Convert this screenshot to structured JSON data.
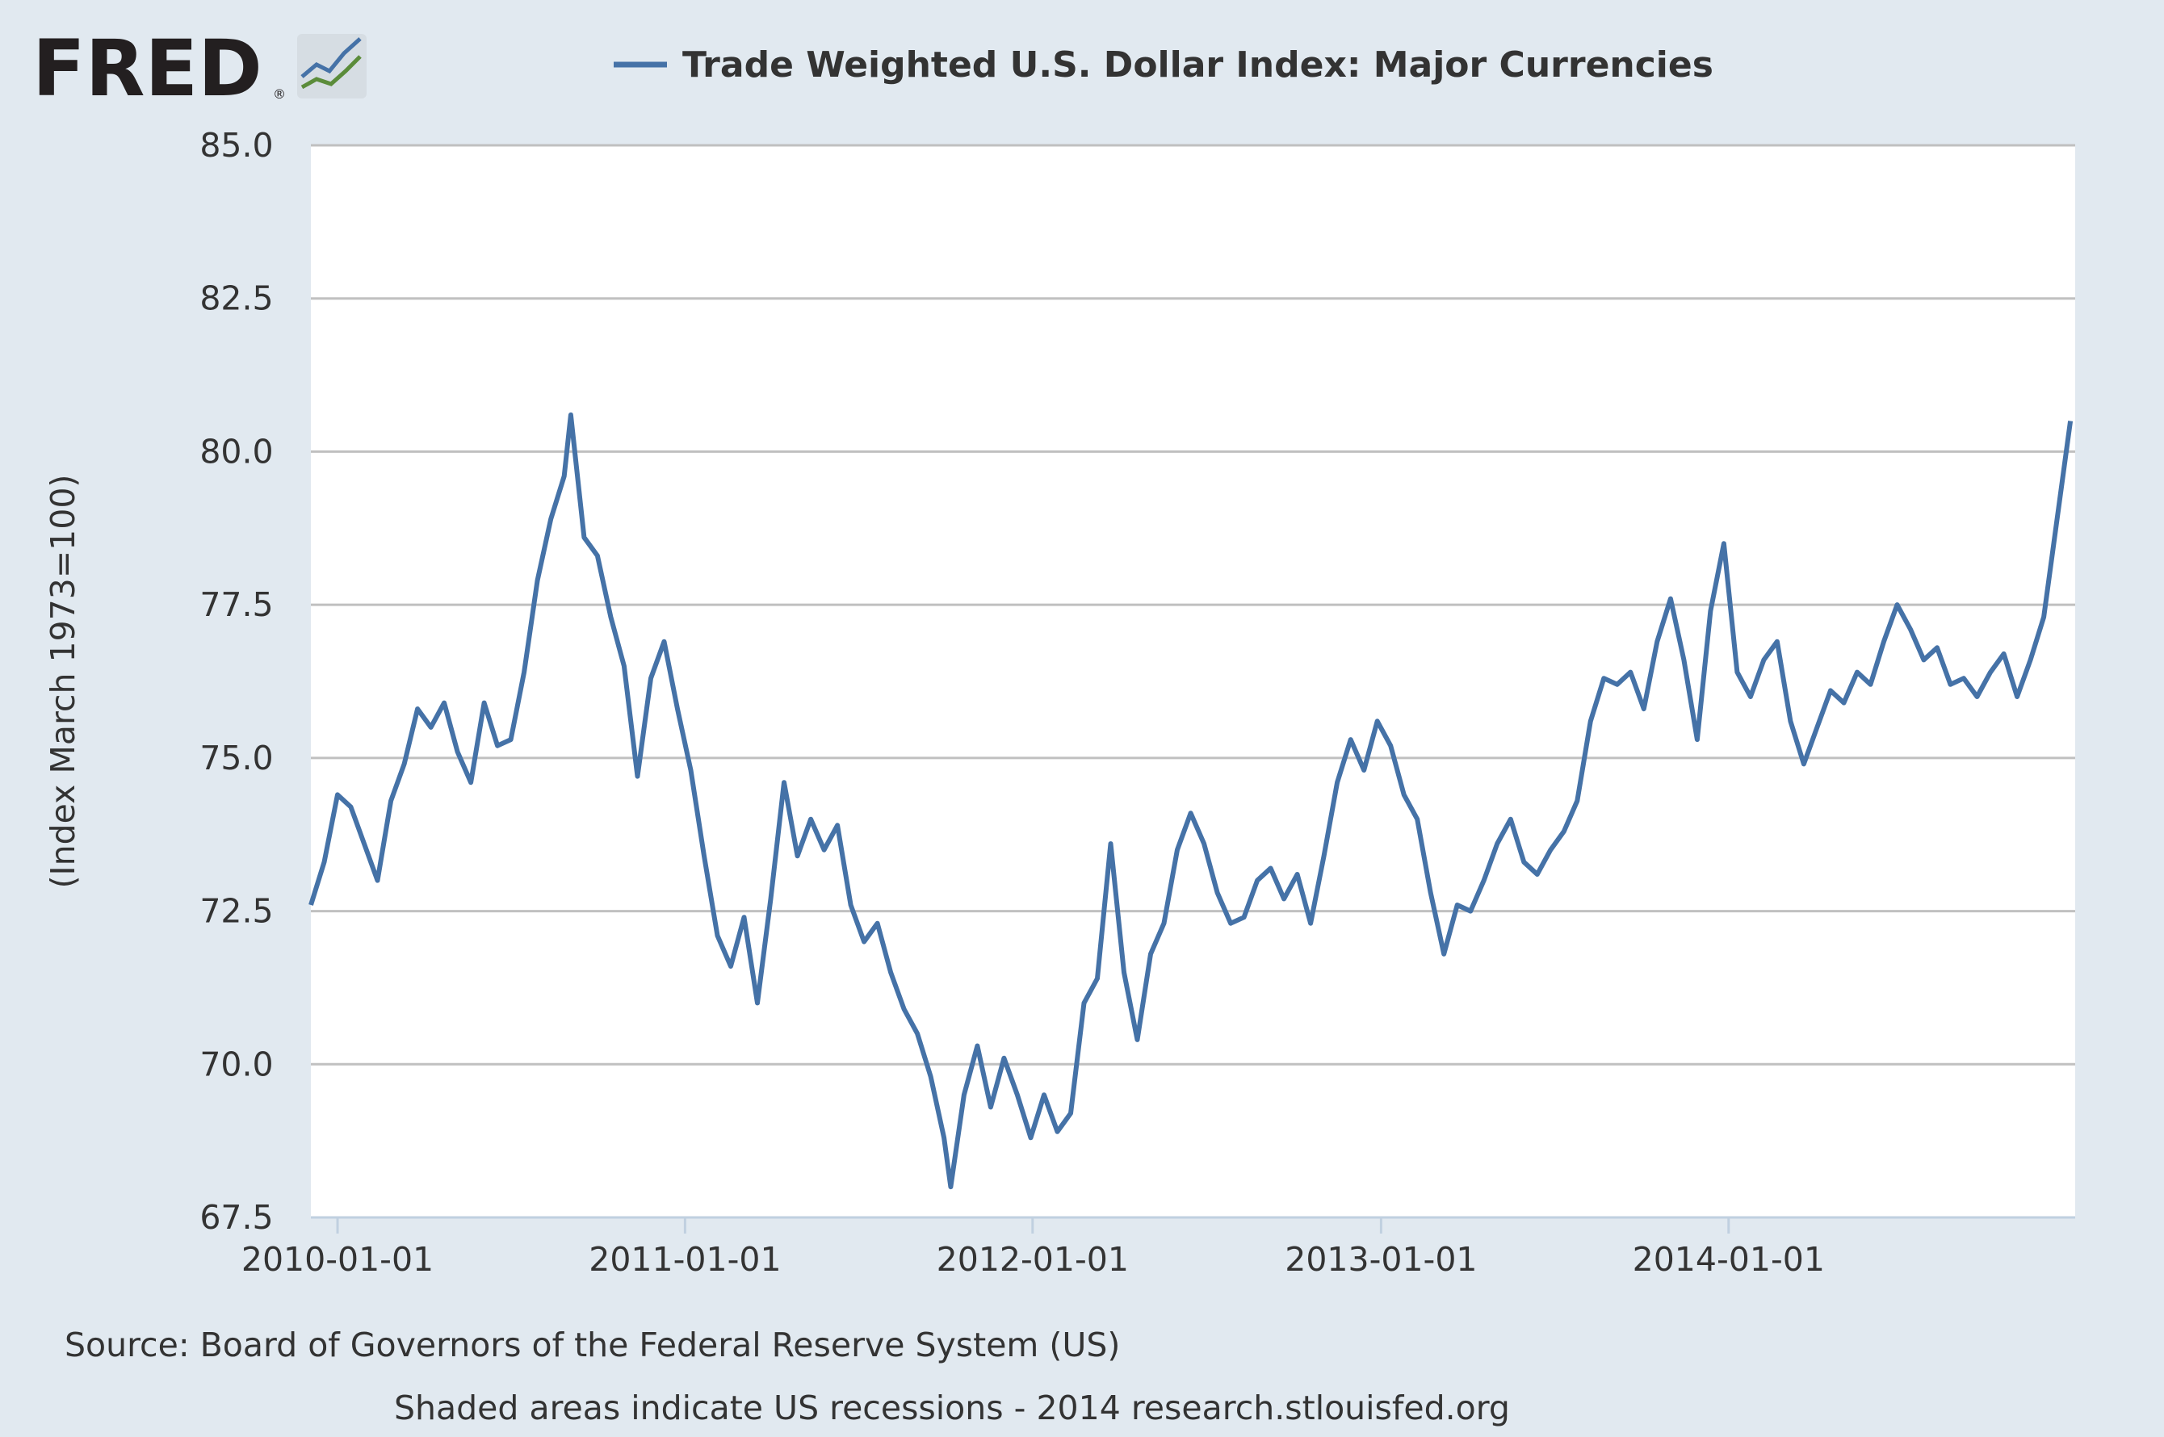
{
  "brand": {
    "name": "FRED",
    "icon": "trend-chart-icon",
    "mark": "®"
  },
  "footer": {
    "source": "Source: Board of Governors of the Federal Reserve System (US)",
    "note": "Shaded areas indicate US recessions - 2014 research.stlouisfed.org"
  },
  "colors": {
    "background": "#e1e9f0",
    "plot": "#ffffff",
    "series": "#4572a7",
    "grid": "#c0c0c0",
    "text": "#333333"
  },
  "chart_data": {
    "type": "line",
    "title": "",
    "xlabel": "",
    "ylabel": "(Index March 1973=100)",
    "legend": {
      "position": "top",
      "entries": [
        "Trade Weighted U.S. Dollar Index: Major Currencies"
      ]
    },
    "grid": "horizontal",
    "xlim": [
      "2009-12-04",
      "2014-12-31"
    ],
    "ylim": [
      67.5,
      85.0
    ],
    "yticks": [
      "67.5",
      "70.0",
      "72.5",
      "75.0",
      "77.5",
      "80.0",
      "82.5",
      "85.0"
    ],
    "xticks": [
      "2010-01-01",
      "2011-01-01",
      "2012-01-01",
      "2013-01-01",
      "2014-01-01"
    ],
    "series": [
      {
        "name": "Trade Weighted U.S. Dollar Index: Major Currencies",
        "points": [
          [
            "2009-12-04",
            72.6
          ],
          [
            "2009-12-18",
            73.3
          ],
          [
            "2010-01-01",
            74.4
          ],
          [
            "2010-01-15",
            74.2
          ],
          [
            "2010-01-29",
            73.6
          ],
          [
            "2010-02-12",
            73.0
          ],
          [
            "2010-02-26",
            74.3
          ],
          [
            "2010-03-12",
            74.9
          ],
          [
            "2010-03-26",
            75.8
          ],
          [
            "2010-04-09",
            75.5
          ],
          [
            "2010-04-23",
            75.9
          ],
          [
            "2010-05-07",
            75.1
          ],
          [
            "2010-05-21",
            74.6
          ],
          [
            "2010-06-04",
            75.9
          ],
          [
            "2010-06-18",
            75.2
          ],
          [
            "2010-07-02",
            75.3
          ],
          [
            "2010-07-16",
            76.4
          ],
          [
            "2010-07-30",
            77.9
          ],
          [
            "2010-08-13",
            78.9
          ],
          [
            "2010-08-27",
            79.6
          ],
          [
            "2010-09-03",
            80.6
          ],
          [
            "2010-09-17",
            78.6
          ],
          [
            "2010-10-01",
            78.3
          ],
          [
            "2010-10-15",
            77.3
          ],
          [
            "2010-10-29",
            76.5
          ],
          [
            "2010-11-12",
            74.7
          ],
          [
            "2010-11-26",
            76.3
          ],
          [
            "2010-12-10",
            76.9
          ],
          [
            "2010-12-24",
            75.8
          ],
          [
            "2011-01-07",
            74.8
          ],
          [
            "2011-01-21",
            73.4
          ],
          [
            "2011-02-04",
            72.1
          ],
          [
            "2011-02-18",
            71.6
          ],
          [
            "2011-03-04",
            72.4
          ],
          [
            "2011-03-18",
            71.0
          ],
          [
            "2011-04-01",
            72.7
          ],
          [
            "2011-04-15",
            74.6
          ],
          [
            "2011-04-29",
            73.4
          ],
          [
            "2011-05-13",
            74.0
          ],
          [
            "2011-05-27",
            73.5
          ],
          [
            "2011-06-10",
            73.9
          ],
          [
            "2011-06-24",
            72.6
          ],
          [
            "2011-07-08",
            72.0
          ],
          [
            "2011-07-22",
            72.3
          ],
          [
            "2011-08-05",
            71.5
          ],
          [
            "2011-08-19",
            70.9
          ],
          [
            "2011-09-02",
            70.5
          ],
          [
            "2011-09-16",
            69.8
          ],
          [
            "2011-09-30",
            68.8
          ],
          [
            "2011-10-07",
            68.0
          ],
          [
            "2011-10-21",
            69.5
          ],
          [
            "2011-11-04",
            70.3
          ],
          [
            "2011-11-18",
            69.3
          ],
          [
            "2011-12-02",
            70.1
          ],
          [
            "2011-12-16",
            69.5
          ],
          [
            "2011-12-30",
            68.8
          ],
          [
            "2012-01-13",
            69.5
          ],
          [
            "2012-01-27",
            68.9
          ],
          [
            "2012-02-10",
            69.2
          ],
          [
            "2012-02-24",
            71.0
          ],
          [
            "2012-03-09",
            71.4
          ],
          [
            "2012-03-23",
            73.6
          ],
          [
            "2012-04-06",
            71.5
          ],
          [
            "2012-04-20",
            70.4
          ],
          [
            "2012-05-04",
            71.8
          ],
          [
            "2012-05-18",
            72.3
          ],
          [
            "2012-06-01",
            73.5
          ],
          [
            "2012-06-15",
            74.1
          ],
          [
            "2012-06-29",
            73.6
          ],
          [
            "2012-07-13",
            72.8
          ],
          [
            "2012-07-27",
            72.3
          ],
          [
            "2012-08-10",
            72.4
          ],
          [
            "2012-08-24",
            73.0
          ],
          [
            "2012-09-07",
            73.2
          ],
          [
            "2012-09-21",
            72.7
          ],
          [
            "2012-10-05",
            73.1
          ],
          [
            "2012-10-19",
            72.3
          ],
          [
            "2012-11-02",
            73.4
          ],
          [
            "2012-11-16",
            74.6
          ],
          [
            "2012-11-30",
            75.3
          ],
          [
            "2012-12-14",
            74.8
          ],
          [
            "2012-12-28",
            75.6
          ],
          [
            "2013-01-11",
            75.2
          ],
          [
            "2013-01-25",
            74.4
          ],
          [
            "2013-02-08",
            74.0
          ],
          [
            "2013-02-22",
            72.8
          ],
          [
            "2013-03-08",
            71.8
          ],
          [
            "2013-03-22",
            72.6
          ],
          [
            "2013-04-05",
            72.5
          ],
          [
            "2013-04-19",
            73.0
          ],
          [
            "2013-05-03",
            73.6
          ],
          [
            "2013-05-17",
            74.0
          ],
          [
            "2013-05-31",
            73.3
          ],
          [
            "2013-06-14",
            73.1
          ],
          [
            "2013-06-28",
            73.5
          ],
          [
            "2013-07-12",
            73.8
          ],
          [
            "2013-07-26",
            74.3
          ],
          [
            "2013-08-09",
            75.6
          ],
          [
            "2013-08-23",
            76.3
          ],
          [
            "2013-09-06",
            76.2
          ],
          [
            "2013-09-20",
            76.4
          ],
          [
            "2013-10-04",
            75.8
          ],
          [
            "2013-10-18",
            76.9
          ],
          [
            "2013-11-01",
            77.6
          ],
          [
            "2013-11-15",
            76.6
          ],
          [
            "2013-11-29",
            75.3
          ],
          [
            "2013-12-13",
            77.4
          ],
          [
            "2013-12-27",
            78.5
          ],
          [
            "2014-01-10",
            76.4
          ],
          [
            "2014-01-24",
            76.0
          ],
          [
            "2014-02-07",
            76.6
          ],
          [
            "2014-02-21",
            76.9
          ],
          [
            "2014-03-07",
            75.6
          ],
          [
            "2014-03-21",
            74.9
          ],
          [
            "2014-04-04",
            75.5
          ],
          [
            "2014-04-18",
            76.1
          ],
          [
            "2014-05-02",
            75.9
          ],
          [
            "2014-05-16",
            76.4
          ],
          [
            "2014-05-30",
            76.2
          ],
          [
            "2014-06-13",
            76.9
          ],
          [
            "2014-06-27",
            77.5
          ],
          [
            "2014-07-11",
            77.1
          ],
          [
            "2014-07-25",
            76.6
          ],
          [
            "2014-08-08",
            76.8
          ],
          [
            "2014-08-22",
            76.2
          ],
          [
            "2014-09-05",
            76.3
          ],
          [
            "2014-09-19",
            76.0
          ],
          [
            "2014-10-03",
            76.4
          ],
          [
            "2014-10-17",
            76.7
          ],
          [
            "2014-10-31",
            76.0
          ],
          [
            "2014-11-14",
            76.6
          ],
          [
            "2014-11-28",
            77.3
          ],
          [
            "2014-12-12",
            78.9
          ],
          [
            "2014-12-26",
            80.5
          ]
        ]
      }
    ]
  }
}
